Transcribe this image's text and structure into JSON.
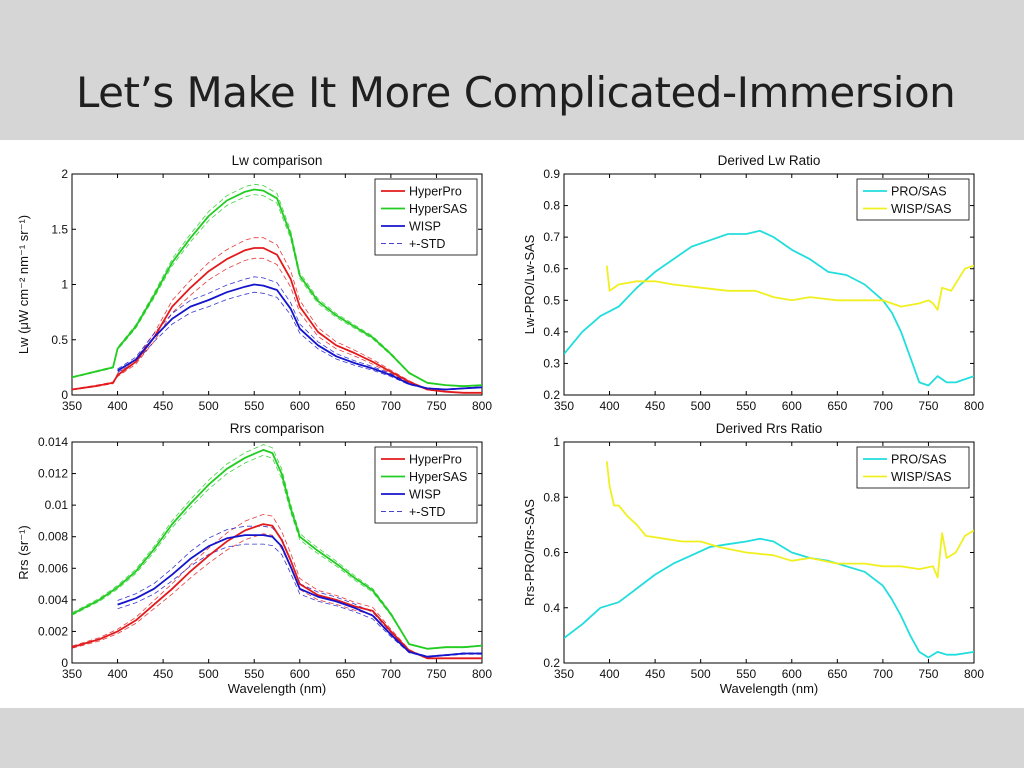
{
  "slide": {
    "title": "Let’s Make It More Complicated-Immersion"
  },
  "chart_data": [
    {
      "id": "lw-comparison",
      "type": "line",
      "title": "Lw comparison",
      "xlabel": "",
      "ylabel": "Lw (μW cm⁻² nm⁻¹ sr⁻¹)",
      "xlim": [
        350,
        800
      ],
      "ylim": [
        0,
        2
      ],
      "xticks": [
        350,
        400,
        450,
        500,
        550,
        600,
        650,
        700,
        750,
        800
      ],
      "yticks": [
        0,
        0.5,
        1,
        1.5,
        2
      ],
      "ytick_labels": [
        "0",
        "0.5",
        "1",
        "1.5",
        "2"
      ],
      "legend_position": "top-right",
      "x": [
        350,
        375,
        395,
        400,
        420,
        440,
        460,
        480,
        500,
        520,
        540,
        550,
        560,
        575,
        590,
        600,
        620,
        640,
        660,
        680,
        700,
        720,
        740,
        760,
        780,
        800
      ],
      "series": [
        {
          "name": "HyperPro",
          "color": "#e31a1c",
          "style": "solid",
          "values": [
            0.05,
            0.08,
            0.11,
            0.18,
            0.3,
            0.52,
            0.8,
            0.97,
            1.12,
            1.23,
            1.31,
            1.33,
            1.33,
            1.27,
            1.05,
            0.8,
            0.57,
            0.45,
            0.38,
            0.3,
            0.21,
            0.12,
            0.05,
            0.03,
            0.02,
            0.02
          ]
        },
        {
          "name": "HyperSAS",
          "color": "#22cc22",
          "style": "solid",
          "values": [
            0.16,
            0.21,
            0.25,
            0.42,
            0.62,
            0.9,
            1.2,
            1.42,
            1.62,
            1.76,
            1.84,
            1.86,
            1.85,
            1.78,
            1.45,
            1.08,
            0.85,
            0.72,
            0.62,
            0.52,
            0.37,
            0.2,
            0.11,
            0.09,
            0.08,
            0.09
          ]
        },
        {
          "name": "WISP",
          "color": "#1414cc",
          "style": "solid",
          "values": [
            null,
            null,
            null,
            0.22,
            0.32,
            0.52,
            0.69,
            0.8,
            0.86,
            0.93,
            0.98,
            1.0,
            0.99,
            0.95,
            0.78,
            0.6,
            0.45,
            0.35,
            0.29,
            0.24,
            0.18,
            0.1,
            0.06,
            0.05,
            0.06,
            0.07
          ]
        }
      ],
      "std_legend_label": "+-STD",
      "std_color": "#4444cc"
    },
    {
      "id": "lw-ratio",
      "type": "line",
      "title": "Derived Lw Ratio",
      "xlabel": "",
      "ylabel": "Lw-PRO/Lw-SAS",
      "xlim": [
        350,
        800
      ],
      "ylim": [
        0.2,
        0.9
      ],
      "xticks": [
        350,
        400,
        450,
        500,
        550,
        600,
        650,
        700,
        750,
        800
      ],
      "yticks": [
        0.2,
        0.3,
        0.4,
        0.5,
        0.6,
        0.7,
        0.8,
        0.9
      ],
      "ytick_labels": [
        "0.2",
        "0.3",
        "0.4",
        "0.5",
        "0.6",
        "0.7",
        "0.8",
        "0.9"
      ],
      "legend_position": "top-right",
      "series": [
        {
          "name": "PRO/SAS",
          "color": "#22dddd",
          "x": [
            350,
            370,
            390,
            410,
            430,
            450,
            470,
            490,
            510,
            530,
            550,
            565,
            580,
            600,
            620,
            640,
            660,
            680,
            700,
            710,
            720,
            730,
            740,
            750,
            760,
            770,
            780,
            800
          ],
          "values": [
            0.33,
            0.4,
            0.45,
            0.48,
            0.54,
            0.59,
            0.63,
            0.67,
            0.69,
            0.71,
            0.71,
            0.72,
            0.7,
            0.66,
            0.63,
            0.59,
            0.58,
            0.55,
            0.5,
            0.46,
            0.4,
            0.32,
            0.24,
            0.23,
            0.26,
            0.24,
            0.24,
            0.26
          ]
        },
        {
          "name": "WISP/SAS",
          "color": "#f0f020",
          "x": [
            397,
            400,
            410,
            430,
            450,
            470,
            500,
            530,
            560,
            580,
            600,
            620,
            650,
            680,
            700,
            720,
            740,
            750,
            755,
            760,
            765,
            775,
            790,
            800
          ],
          "values": [
            0.61,
            0.53,
            0.55,
            0.56,
            0.56,
            0.55,
            0.54,
            0.53,
            0.53,
            0.51,
            0.5,
            0.51,
            0.5,
            0.5,
            0.5,
            0.48,
            0.49,
            0.5,
            0.49,
            0.47,
            0.54,
            0.53,
            0.6,
            0.61
          ]
        }
      ]
    },
    {
      "id": "rrs-comparison",
      "type": "line",
      "title": "Rrs comparison",
      "xlabel": "Wavelength (nm)",
      "ylabel": "Rrs (sr⁻¹)",
      "xlim": [
        350,
        800
      ],
      "ylim": [
        0,
        0.014
      ],
      "xticks": [
        350,
        400,
        450,
        500,
        550,
        600,
        650,
        700,
        750,
        800
      ],
      "yticks": [
        0,
        0.002,
        0.004,
        0.006,
        0.008,
        0.01,
        0.012,
        0.014
      ],
      "ytick_labels": [
        "0",
        "0.002",
        "0.004",
        "0.006",
        "0.008",
        "0.01",
        "0.012",
        "0.014"
      ],
      "legend_position": "top-right",
      "x": [
        350,
        380,
        400,
        420,
        440,
        460,
        480,
        500,
        520,
        540,
        560,
        570,
        580,
        590,
        600,
        620,
        640,
        660,
        680,
        700,
        720,
        740,
        760,
        780,
        800
      ],
      "series": [
        {
          "name": "HyperPro",
          "color": "#e31a1c",
          "style": "solid",
          "values": [
            0.001,
            0.0015,
            0.002,
            0.0027,
            0.0037,
            0.0047,
            0.0058,
            0.0068,
            0.0077,
            0.0084,
            0.0088,
            0.0087,
            0.0078,
            0.0065,
            0.005,
            0.0043,
            0.004,
            0.0036,
            0.0033,
            0.002,
            0.0008,
            0.0003,
            0.0003,
            0.0003,
            0.0003
          ]
        },
        {
          "name": "HyperSAS",
          "color": "#22cc22",
          "style": "solid",
          "values": [
            0.0031,
            0.004,
            0.0048,
            0.0058,
            0.0072,
            0.0088,
            0.0101,
            0.0113,
            0.0123,
            0.013,
            0.0135,
            0.0133,
            0.012,
            0.0098,
            0.008,
            0.0071,
            0.0063,
            0.0054,
            0.0046,
            0.0031,
            0.0012,
            0.0009,
            0.001,
            0.001,
            0.0011
          ]
        },
        {
          "name": "WISP",
          "color": "#1414cc",
          "style": "solid",
          "values": [
            null,
            null,
            0.0037,
            0.0041,
            0.0047,
            0.0056,
            0.0066,
            0.0074,
            0.0079,
            0.0081,
            0.0081,
            0.008,
            0.0074,
            0.0061,
            0.0047,
            0.0042,
            0.0039,
            0.0035,
            0.003,
            0.0018,
            0.0007,
            0.0004,
            0.0005,
            0.0006,
            0.0006
          ]
        }
      ],
      "std_legend_label": "+-STD",
      "std_color": "#4444cc"
    },
    {
      "id": "rrs-ratio",
      "type": "line",
      "title": "Derived Rrs Ratio",
      "xlabel": "Wavelength (nm)",
      "ylabel": "Rrs-PRO/Rrs-SAS",
      "xlim": [
        350,
        800
      ],
      "ylim": [
        0.2,
        1
      ],
      "xticks": [
        350,
        400,
        450,
        500,
        550,
        600,
        650,
        700,
        750,
        800
      ],
      "yticks": [
        0.2,
        0.4,
        0.6,
        0.8,
        1
      ],
      "ytick_labels": [
        "0.2",
        "0.4",
        "0.6",
        "0.8",
        "1"
      ],
      "legend_position": "top-right",
      "series": [
        {
          "name": "PRO/SAS",
          "color": "#22dddd",
          "x": [
            350,
            370,
            390,
            410,
            430,
            450,
            470,
            490,
            510,
            530,
            550,
            565,
            580,
            600,
            620,
            640,
            660,
            680,
            700,
            710,
            720,
            730,
            740,
            750,
            760,
            770,
            780,
            800
          ],
          "values": [
            0.29,
            0.34,
            0.4,
            0.42,
            0.47,
            0.52,
            0.56,
            0.59,
            0.62,
            0.63,
            0.64,
            0.65,
            0.64,
            0.6,
            0.58,
            0.57,
            0.55,
            0.53,
            0.48,
            0.43,
            0.37,
            0.3,
            0.24,
            0.22,
            0.24,
            0.23,
            0.23,
            0.24
          ]
        },
        {
          "name": "WISP/SAS",
          "color": "#f0f020",
          "x": [
            397,
            400,
            405,
            410,
            420,
            430,
            440,
            460,
            480,
            500,
            520,
            550,
            580,
            600,
            620,
            650,
            680,
            700,
            720,
            740,
            755,
            760,
            765,
            770,
            780,
            790,
            800
          ],
          "values": [
            0.93,
            0.84,
            0.77,
            0.77,
            0.73,
            0.7,
            0.66,
            0.65,
            0.64,
            0.64,
            0.62,
            0.6,
            0.59,
            0.57,
            0.58,
            0.56,
            0.56,
            0.55,
            0.55,
            0.54,
            0.55,
            0.51,
            0.67,
            0.58,
            0.6,
            0.66,
            0.68
          ]
        }
      ]
    }
  ]
}
